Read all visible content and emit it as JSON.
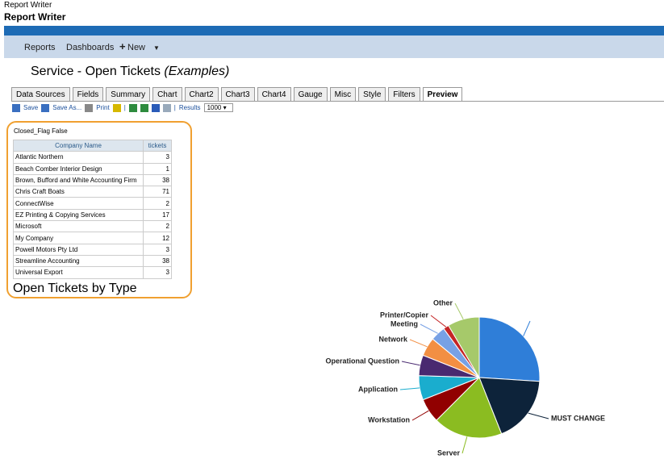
{
  "app": {
    "window_title": "Report Writer",
    "heading": "Report Writer"
  },
  "nav": [
    "Reports",
    "Dashboards",
    "New"
  ],
  "page_title": {
    "main": "Service - Open Tickets",
    "suffix": "(Examples)"
  },
  "tabs": [
    "Data Sources",
    "Fields",
    "Summary",
    "Chart",
    "Chart2",
    "Chart3",
    "Chart4",
    "Gauge",
    "Misc",
    "Style",
    "Filters",
    "Preview"
  ],
  "toolbar": {
    "save": "Save",
    "save_as": "Save As...",
    "print": "Print",
    "results_label": "Results",
    "results_value": 1000
  },
  "filter": "Closed_Flag False",
  "table": {
    "columns": [
      "Company Name",
      "tickets"
    ],
    "rows": [
      [
        "Atlantic Northern",
        3
      ],
      [
        "Beach Comber Interior Design",
        1
      ],
      [
        "Brown, Bufford and White Accounting Firm",
        38
      ],
      [
        "Chris Craft Boats",
        71
      ],
      [
        "ConnectWise",
        2
      ],
      [
        "EZ Printing & Copying Services",
        17
      ],
      [
        "Microsoft",
        2
      ],
      [
        "My Company",
        12
      ],
      [
        "Powell Motors Pty Ltd",
        3
      ],
      [
        "Streamline Accounting",
        38
      ],
      [
        "Universal Export",
        3
      ]
    ]
  },
  "chart_data": {
    "type": "pie",
    "title": "Open Tickets by Type",
    "categories": [
      null,
      "MUST CHANGE",
      "Server",
      "Workstation",
      "Application",
      "Operational Question",
      "Network",
      "Meeting",
      "Printer/Copier",
      "Other"
    ],
    "values": [
      26,
      18,
      18.5,
      6.5,
      6.5,
      5.5,
      5,
      4,
      1.5,
      8.5
    ],
    "colors": [
      "#2f7ed8",
      "#0d233a",
      "#8bbc21",
      "#910000",
      "#1aadce",
      "#492970",
      "#f28f43",
      "#77a1e5",
      "#c42525",
      "#a6c96a"
    ]
  }
}
